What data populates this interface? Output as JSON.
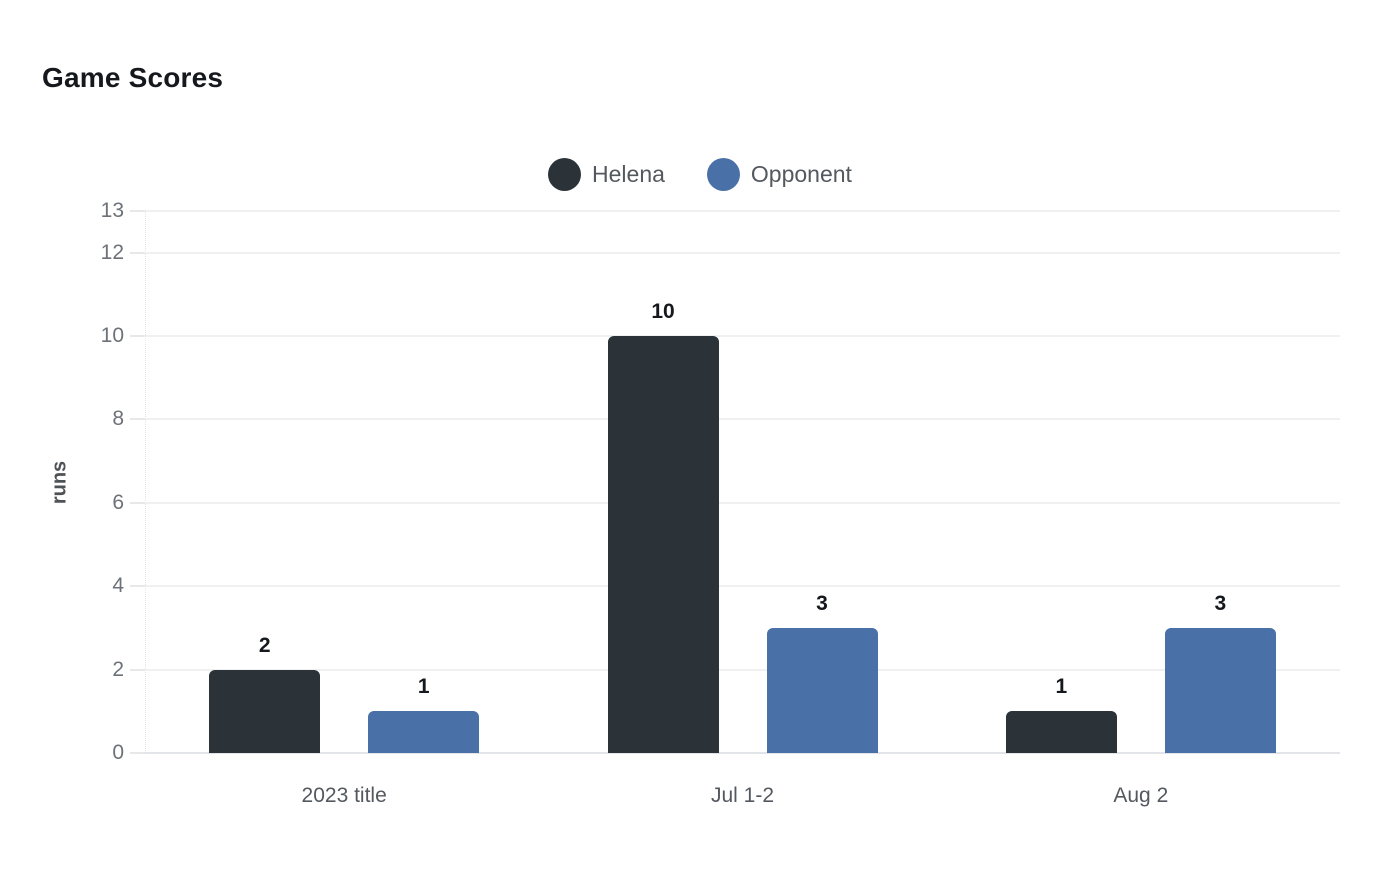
{
  "title": "Game Scores",
  "chart_data": {
    "type": "bar",
    "title": "Game Scores",
    "categories": [
      "2023 title",
      "Jul 1-2",
      "Aug 2"
    ],
    "series": [
      {
        "name": "Helena",
        "color": "#2b3338",
        "values": [
          2,
          10,
          1
        ]
      },
      {
        "name": "Opponent",
        "color": "#4a70a8",
        "values": [
          1,
          3,
          3
        ]
      }
    ],
    "xlabel": "",
    "ylabel": "runs",
    "ylim": [
      0,
      13
    ],
    "yticks": [
      0,
      2,
      4,
      6,
      8,
      10,
      12,
      13
    ],
    "grid": true,
    "legend_position": "top-center",
    "value_labels_shown": true,
    "colors": {
      "background": "#ffffff",
      "gridline": "#f0f0f0",
      "axis_line": "#e2e4e7",
      "tick_label": "#6d7278",
      "category_label": "#54595f",
      "legend_label": "#54595f",
      "title_text": "#15181c",
      "value_label": "#15181c"
    }
  }
}
